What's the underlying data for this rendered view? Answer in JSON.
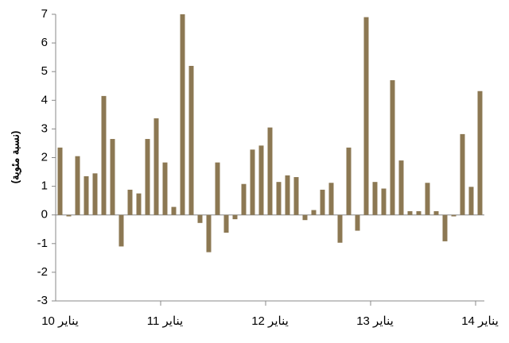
{
  "chart_data": {
    "type": "bar",
    "y_label": "(نسبة مئوية)",
    "categories": [
      "يناير 10",
      null,
      null,
      null,
      null,
      null,
      null,
      null,
      null,
      null,
      null,
      null,
      "يناير 11",
      null,
      null,
      null,
      null,
      null,
      null,
      null,
      null,
      null,
      null,
      null,
      "يناير 12",
      null,
      null,
      null,
      null,
      null,
      null,
      null,
      null,
      null,
      null,
      null,
      "يناير 13",
      null,
      null,
      null,
      null,
      null,
      null,
      null,
      null,
      null,
      null,
      null,
      "يناير 14"
    ],
    "values": [
      2.35,
      -0.05,
      2.05,
      1.35,
      1.45,
      4.15,
      2.65,
      -1.1,
      0.88,
      0.75,
      2.65,
      3.37,
      1.83,
      0.28,
      7.0,
      5.2,
      -0.28,
      -1.3,
      1.83,
      -0.62,
      -0.15,
      1.08,
      2.28,
      2.42,
      3.05,
      1.15,
      1.38,
      1.32,
      -0.18,
      0.17,
      0.88,
      1.12,
      -0.97,
      2.35,
      -0.55,
      6.9,
      1.15,
      0.92,
      4.7,
      1.9,
      0.13,
      0.13,
      1.12,
      0.13,
      -0.92,
      -0.05,
      2.82,
      0.98,
      4.32
    ],
    "color": "#8c7853",
    "ylim": [
      -3,
      7
    ],
    "yticks": [
      -3,
      -2,
      -1,
      0,
      1,
      2,
      3,
      4,
      5,
      6,
      7
    ]
  }
}
